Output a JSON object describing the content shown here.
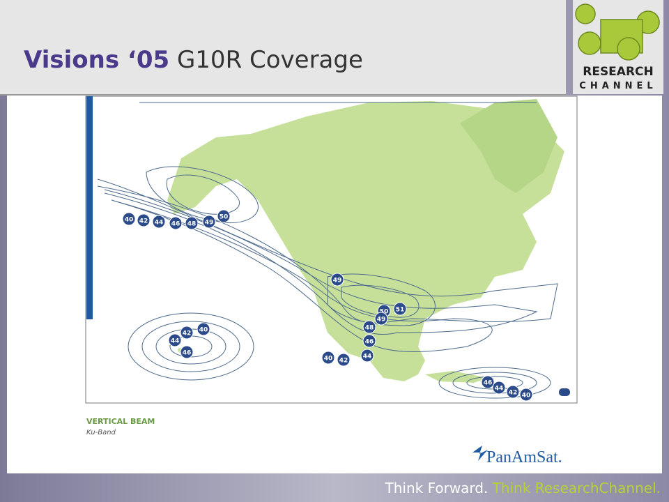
{
  "header": {
    "title_bold": "Visions ‘05",
    "title_rest": "G10R Coverage"
  },
  "logo": {
    "line1": "RESEARCH",
    "line2": "CHANNEL"
  },
  "map": {
    "contour_labels": {
      "alaska": [
        40,
        42,
        44,
        46,
        48,
        49,
        50
      ],
      "hawaii": [
        42,
        40,
        44,
        46
      ],
      "mainland": [
        49,
        50,
        51,
        49,
        48,
        46,
        44,
        40,
        42
      ],
      "caribbean": [
        46,
        44,
        42,
        40
      ]
    },
    "legend_title": "VERTICAL BEAM",
    "legend_subtitle": "Ku-Band",
    "brand": "PanAmSat."
  },
  "footer": {
    "part1": "Think Forward.",
    "part2": "Think ResearchChannel."
  }
}
